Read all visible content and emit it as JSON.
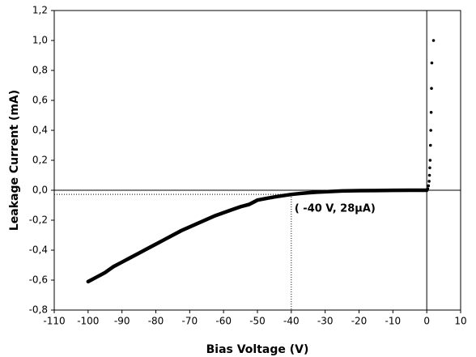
{
  "chart_data": {
    "type": "scatter",
    "x_label": "Bias Voltage (V)",
    "y_label": "Leakage Current (mA)",
    "xlim": [
      -110,
      10
    ],
    "ylim": [
      -0.8,
      1.2
    ],
    "xticks": [
      -110,
      -100,
      -90,
      -80,
      -70,
      -60,
      -50,
      -40,
      -30,
      -20,
      -10,
      0,
      10
    ],
    "yticks": [
      {
        "value": -0.8,
        "label": "-0,8"
      },
      {
        "value": -0.6,
        "label": "-0,6"
      },
      {
        "value": -0.4,
        "label": "-0,4"
      },
      {
        "value": -0.2,
        "label": "-0,2"
      },
      {
        "value": 0,
        "label": "0,0"
      },
      {
        "value": 0.2,
        "label": "0,2"
      },
      {
        "value": 0.4,
        "label": "0,4"
      },
      {
        "value": 0.6,
        "label": "0,6"
      },
      {
        "value": 0.8,
        "label": "0,8"
      },
      {
        "value": 1.0,
        "label": "1,0"
      },
      {
        "value": 1.2,
        "label": "1,2"
      }
    ],
    "zero_lines": true,
    "series": [
      {
        "color": "#000000",
        "mode": "line",
        "x": [
          -100,
          -97.5,
          -95,
          -92.5,
          -90,
          -87.5,
          -85,
          -82.5,
          -80,
          -77.5,
          -75,
          -72.5,
          -70,
          -67.5,
          -65,
          -62.5,
          -60,
          -57.5,
          -55,
          -52.5,
          -50,
          -47.5,
          -45,
          -42.5,
          -40,
          -37.5,
          -35,
          -32.5,
          -30,
          -25,
          -20,
          -15,
          -10,
          -5,
          0
        ],
        "values": [
          -0.61,
          -0.58,
          -0.55,
          -0.51,
          -0.48,
          -0.45,
          -0.42,
          -0.39,
          -0.36,
          -0.33,
          -0.3,
          -0.27,
          -0.245,
          -0.22,
          -0.195,
          -0.17,
          -0.15,
          -0.13,
          -0.11,
          -0.095,
          -0.066,
          -0.055,
          -0.045,
          -0.036,
          -0.028,
          -0.022,
          -0.017,
          -0.013,
          -0.01,
          -0.005,
          -0.003,
          -0.002,
          -0.001,
          0,
          0
        ]
      },
      {
        "color": "#000000",
        "mode": "markers",
        "x": [
          0.3,
          0.5,
          0.7,
          0.8,
          0.9,
          1.0,
          1.1,
          1.2,
          1.3,
          1.4,
          1.5,
          2
        ],
        "values": [
          0.01,
          0.03,
          0.06,
          0.1,
          0.15,
          0.2,
          0.3,
          0.4,
          0.52,
          0.68,
          0.85,
          1.0
        ]
      }
    ],
    "annotation": {
      "text": "( -40 V, 28µA)",
      "x": -40,
      "y": -0.028
    }
  }
}
